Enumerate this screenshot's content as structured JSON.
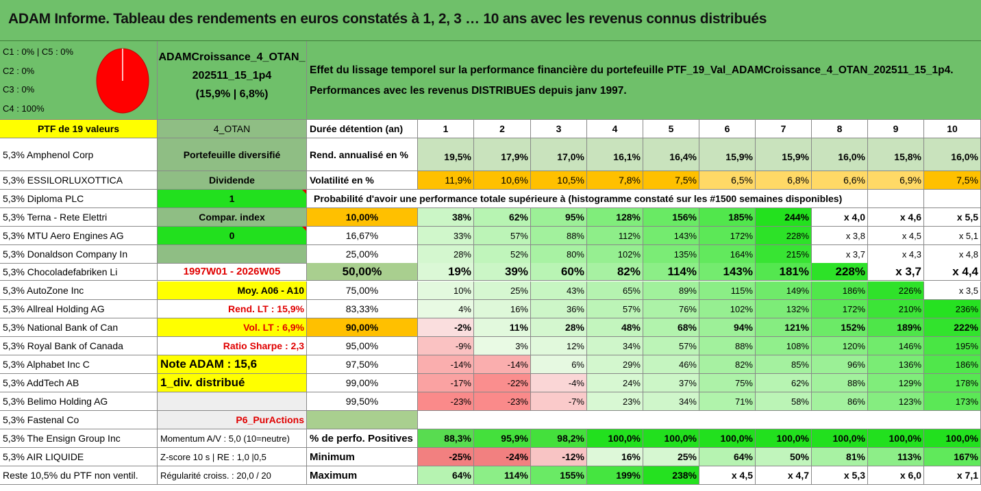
{
  "title": "ADAM Informe. Tableau des rendements en euros constatés à 1, 2, 3 … 10 ans avec les revenus connus distribués",
  "pie": {
    "lines": [
      "C1 : 0% | C5 : 0%",
      "C2 : 0%",
      "C3 : 0%",
      "C4 : 100%"
    ],
    "color": "#ff0000"
  },
  "portfolio": {
    "name_line1": "ADAMCroissance_4_OTAN_",
    "name_line2": "202511_15_1p4",
    "name_line3": "(15,9% | 6,8%)"
  },
  "description": {
    "line1": "Effet du lissage temporel sur la performance financière du portefeuille PTF_19_Val_ADAMCroissance_4_OTAN_202511_15_1p4.",
    "line2": "Performances avec les revenus DISTRIBUES depuis janv 1997."
  },
  "holdings_header": "PTF de 19 valeurs",
  "holdings": [
    "5,3% Amphenol Corp",
    "5,3% ESSILORLUXOTTICA",
    "5,3% Diploma PLC",
    "5,3% Terna - Rete Elettri",
    "5,3% MTU Aero Engines AG",
    "5,3% Donaldson Company In",
    "5,3% Chocoladefabriken Li",
    "5,3% AutoZone Inc",
    "5,3% Allreal Holding AG",
    "5,3% National Bank of Can",
    "5,3% Royal Bank of Canada",
    "5,3% Alphabet Inc C",
    "5,3% AddTech AB",
    "5,3% Belimo Holding AG",
    "5,3% Fastenal Co",
    "5,3% The Ensign Group Inc",
    "5,3% AIR LIQUIDE",
    "Reste 10,5% du PTF non ventil."
  ],
  "info": [
    "4_OTAN",
    "Portefeuille diversifié",
    "Dividende",
    "1",
    "Compar. index",
    "0",
    "",
    "1997W01 - 2026W05",
    "Moy. A06 - A10",
    "Rend. LT : 15,9%",
    "Vol. LT : 6,9%",
    "Ratio Sharpe : 2,3",
    "Note ADAM : 15,6",
    "1_div. distribué",
    "",
    "P6_PurActions",
    "Momentum A/V : 5,0 (10=neutre)",
    "Z-score 10 s | RE : 1,0 |0,5",
    "Régularité croiss. : 20,0 / 20"
  ],
  "table": {
    "duration_label": "Durée détention (an)",
    "years": [
      "1",
      "2",
      "3",
      "4",
      "5",
      "6",
      "7",
      "8",
      "9",
      "10"
    ],
    "rend_label": "Rend. annualisé en %",
    "rend": [
      "19,5%",
      "17,9%",
      "17,0%",
      "16,1%",
      "16,4%",
      "15,9%",
      "15,9%",
      "16,0%",
      "15,8%",
      "16,0%"
    ],
    "vol_label": "Volatilité en %",
    "vol": [
      "11,9%",
      "10,6%",
      "10,5%",
      "7,8%",
      "7,5%",
      "6,5%",
      "6,8%",
      "6,6%",
      "6,9%",
      "7,5%"
    ],
    "prob_title": "Probabilité d'avoir une performance totale supérieure à (histogramme constaté sur les #1500 semaines disponibles)",
    "prob_rows": [
      {
        "p": "10,00%",
        "v": [
          "38%",
          "62%",
          "95%",
          "128%",
          "156%",
          "185%",
          "244%",
          "x 4,0",
          "x 4,6",
          "x 5,5"
        ]
      },
      {
        "p": "16,67%",
        "v": [
          "33%",
          "57%",
          "88%",
          "112%",
          "143%",
          "172%",
          "228%",
          "x 3,8",
          "x 4,5",
          "x 5,1"
        ]
      },
      {
        "p": "25,00%",
        "v": [
          "28%",
          "52%",
          "80%",
          "102%",
          "135%",
          "164%",
          "215%",
          "x 3,7",
          "x 4,3",
          "x 4,8"
        ]
      },
      {
        "p": "50,00%",
        "v": [
          "19%",
          "39%",
          "60%",
          "82%",
          "114%",
          "143%",
          "181%",
          "228%",
          "x 3,7",
          "x 4,4"
        ]
      },
      {
        "p": "75,00%",
        "v": [
          "10%",
          "25%",
          "43%",
          "65%",
          "89%",
          "115%",
          "149%",
          "186%",
          "226%",
          "x 3,5"
        ]
      },
      {
        "p": "83,33%",
        "v": [
          "4%",
          "16%",
          "36%",
          "57%",
          "76%",
          "102%",
          "132%",
          "172%",
          "210%",
          "236%"
        ]
      },
      {
        "p": "90,00%",
        "v": [
          "-2%",
          "11%",
          "28%",
          "48%",
          "68%",
          "94%",
          "121%",
          "152%",
          "189%",
          "222%"
        ]
      },
      {
        "p": "95,00%",
        "v": [
          "-9%",
          "3%",
          "12%",
          "34%",
          "57%",
          "88%",
          "108%",
          "120%",
          "146%",
          "195%"
        ]
      },
      {
        "p": "97,50%",
        "v": [
          "-14%",
          "-14%",
          "6%",
          "29%",
          "46%",
          "82%",
          "85%",
          "96%",
          "136%",
          "186%"
        ]
      },
      {
        "p": "99,00%",
        "v": [
          "-17%",
          "-22%",
          "-4%",
          "24%",
          "37%",
          "75%",
          "62%",
          "88%",
          "129%",
          "178%"
        ]
      },
      {
        "p": "99,50%",
        "v": [
          "-23%",
          "-23%",
          "-7%",
          "23%",
          "34%",
          "71%",
          "58%",
          "86%",
          "123%",
          "173%"
        ]
      }
    ],
    "pos_label": "% de perfo. Positives",
    "pos": [
      "88,3%",
      "95,9%",
      "98,2%",
      "100,0%",
      "100,0%",
      "100,0%",
      "100,0%",
      "100,0%",
      "100,0%",
      "100,0%"
    ],
    "min_label": "Minimum",
    "min": [
      "-25%",
      "-24%",
      "-12%",
      "16%",
      "25%",
      "64%",
      "50%",
      "81%",
      "113%",
      "167%"
    ],
    "max_label": "Maximum",
    "max": [
      "64%",
      "114%",
      "155%",
      "199%",
      "238%",
      "x 4,5",
      "x 4,7",
      "x 5,3",
      "x 6,0",
      "x 7,1"
    ]
  }
}
